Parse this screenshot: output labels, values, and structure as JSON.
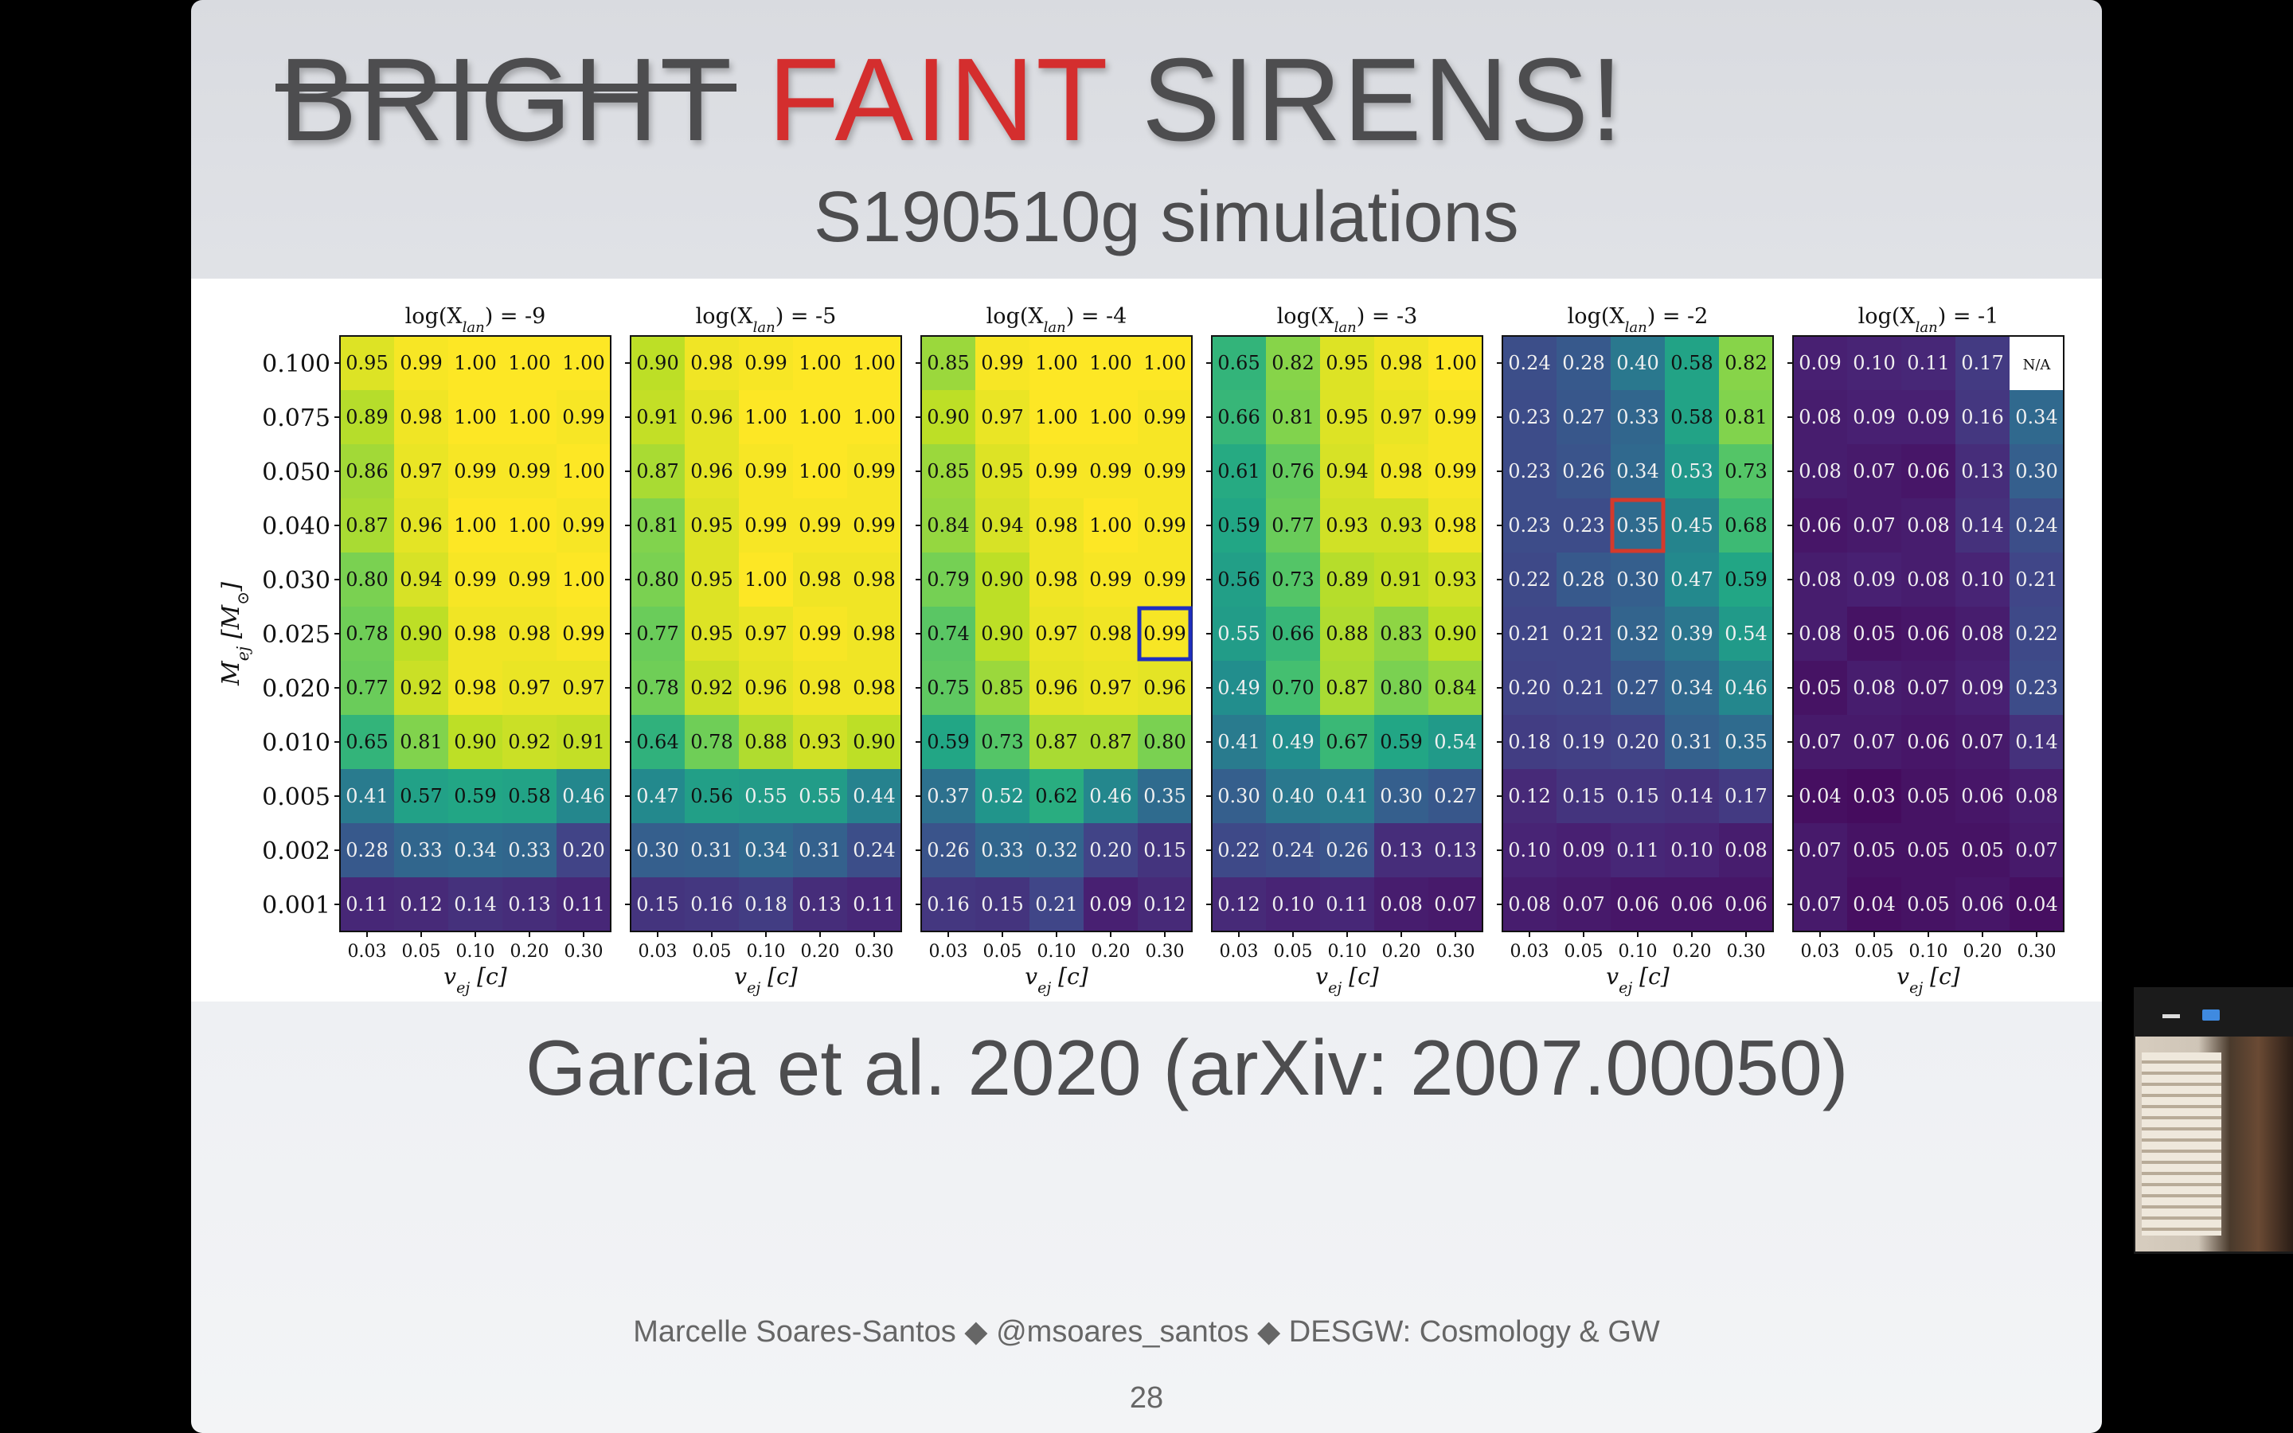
{
  "slide": {
    "title": {
      "struck": "BRIGHT",
      "red": "FAINT",
      "rest": "SIRENS!"
    },
    "subtitle": "S190510g simulations",
    "citation": "Garcia et al. 2020 (arXiv: 2007.00050)",
    "footer": "Marcelle Soares-Santos ◆ @msoares_santos ◆ DESGW: Cosmology & GW",
    "page_number": "28"
  },
  "chart_data": {
    "type": "heatmap",
    "ylabel": "M_ej [M_⊙]",
    "xlabel": "v_ej [c]",
    "y_categories": [
      "0.100",
      "0.075",
      "0.050",
      "0.040",
      "0.030",
      "0.025",
      "0.020",
      "0.010",
      "0.005",
      "0.002",
      "0.001"
    ],
    "x_categories": [
      "0.03",
      "0.05",
      "0.10",
      "0.20",
      "0.30"
    ],
    "colormap": "viridis",
    "highlight_colors": {
      "blue": "#1f2fbf",
      "red": "#d43a2c"
    },
    "panels": [
      {
        "title": "log(X_lan) = -9",
        "values": [
          [
            0.95,
            0.99,
            1.0,
            1.0,
            1.0
          ],
          [
            0.89,
            0.98,
            1.0,
            1.0,
            0.99
          ],
          [
            0.86,
            0.97,
            0.99,
            0.99,
            1.0
          ],
          [
            0.87,
            0.96,
            1.0,
            1.0,
            0.99
          ],
          [
            0.8,
            0.94,
            0.99,
            0.99,
            1.0
          ],
          [
            0.78,
            0.9,
            0.98,
            0.98,
            0.99
          ],
          [
            0.77,
            0.92,
            0.98,
            0.97,
            0.97
          ],
          [
            0.65,
            0.81,
            0.9,
            0.92,
            0.91
          ],
          [
            0.41,
            0.57,
            0.59,
            0.58,
            0.46
          ],
          [
            0.28,
            0.33,
            0.34,
            0.33,
            0.2
          ],
          [
            0.11,
            0.12,
            0.14,
            0.13,
            0.11
          ]
        ]
      },
      {
        "title": "log(X_lan) = -5",
        "values": [
          [
            0.9,
            0.98,
            0.99,
            1.0,
            1.0
          ],
          [
            0.91,
            0.96,
            1.0,
            1.0,
            1.0
          ],
          [
            0.87,
            0.96,
            0.99,
            1.0,
            0.99
          ],
          [
            0.81,
            0.95,
            0.99,
            0.99,
            0.99
          ],
          [
            0.8,
            0.95,
            1.0,
            0.98,
            0.98
          ],
          [
            0.77,
            0.95,
            0.97,
            0.99,
            0.98
          ],
          [
            0.78,
            0.92,
            0.96,
            0.98,
            0.98
          ],
          [
            0.64,
            0.78,
            0.88,
            0.93,
            0.9
          ],
          [
            0.47,
            0.56,
            0.55,
            0.55,
            0.44
          ],
          [
            0.3,
            0.31,
            0.34,
            0.31,
            0.24
          ],
          [
            0.15,
            0.16,
            0.18,
            0.13,
            0.11
          ]
        ]
      },
      {
        "title": "log(X_lan) = -4",
        "highlight": {
          "row": 5,
          "col": 4,
          "color": "blue"
        },
        "values": [
          [
            0.85,
            0.99,
            1.0,
            1.0,
            1.0
          ],
          [
            0.9,
            0.97,
            1.0,
            1.0,
            0.99
          ],
          [
            0.85,
            0.95,
            0.99,
            0.99,
            0.99
          ],
          [
            0.84,
            0.94,
            0.98,
            1.0,
            0.99
          ],
          [
            0.79,
            0.9,
            0.98,
            0.99,
            0.99
          ],
          [
            0.74,
            0.9,
            0.97,
            0.98,
            0.99
          ],
          [
            0.75,
            0.85,
            0.96,
            0.97,
            0.96
          ],
          [
            0.59,
            0.73,
            0.87,
            0.87,
            0.8
          ],
          [
            0.37,
            0.52,
            0.62,
            0.46,
            0.35
          ],
          [
            0.26,
            0.33,
            0.32,
            0.2,
            0.15
          ],
          [
            0.16,
            0.15,
            0.21,
            0.09,
            0.12
          ]
        ]
      },
      {
        "title": "log(X_lan) = -3",
        "values": [
          [
            0.65,
            0.82,
            0.95,
            0.98,
            1.0
          ],
          [
            0.66,
            0.81,
            0.95,
            0.97,
            0.99
          ],
          [
            0.61,
            0.76,
            0.94,
            0.98,
            0.99
          ],
          [
            0.59,
            0.77,
            0.93,
            0.93,
            0.98
          ],
          [
            0.56,
            0.73,
            0.89,
            0.91,
            0.93
          ],
          [
            0.55,
            0.66,
            0.88,
            0.83,
            0.9
          ],
          [
            0.49,
            0.7,
            0.87,
            0.8,
            0.84
          ],
          [
            0.41,
            0.49,
            0.67,
            0.59,
            0.54
          ],
          [
            0.3,
            0.4,
            0.41,
            0.3,
            0.27
          ],
          [
            0.22,
            0.24,
            0.26,
            0.13,
            0.13
          ],
          [
            0.12,
            0.1,
            0.11,
            0.08,
            0.07
          ]
        ]
      },
      {
        "title": "log(X_lan) = -2",
        "highlight": {
          "row": 3,
          "col": 2,
          "color": "red"
        },
        "values": [
          [
            0.24,
            0.28,
            0.4,
            0.58,
            0.82
          ],
          [
            0.23,
            0.27,
            0.33,
            0.58,
            0.81
          ],
          [
            0.23,
            0.26,
            0.34,
            0.53,
            0.73
          ],
          [
            0.23,
            0.23,
            0.35,
            0.45,
            0.68
          ],
          [
            0.22,
            0.28,
            0.3,
            0.47,
            0.59
          ],
          [
            0.21,
            0.21,
            0.32,
            0.39,
            0.54
          ],
          [
            0.2,
            0.21,
            0.27,
            0.34,
            0.46
          ],
          [
            0.18,
            0.19,
            0.2,
            0.31,
            0.35
          ],
          [
            0.12,
            0.15,
            0.15,
            0.14,
            0.17
          ],
          [
            0.1,
            0.09,
            0.11,
            0.1,
            0.08
          ],
          [
            0.08,
            0.07,
            0.06,
            0.06,
            0.06
          ]
        ]
      },
      {
        "title": "log(X_lan) = -1",
        "values": [
          [
            0.09,
            0.1,
            0.11,
            0.17,
            "N/A"
          ],
          [
            0.08,
            0.09,
            0.09,
            0.16,
            0.34
          ],
          [
            0.08,
            0.07,
            0.06,
            0.13,
            0.3
          ],
          [
            0.06,
            0.07,
            0.08,
            0.14,
            0.24
          ],
          [
            0.08,
            0.09,
            0.08,
            0.1,
            0.21
          ],
          [
            0.08,
            0.05,
            0.06,
            0.08,
            0.22
          ],
          [
            0.05,
            0.08,
            0.07,
            0.09,
            0.23
          ],
          [
            0.07,
            0.07,
            0.06,
            0.07,
            0.14
          ],
          [
            0.04,
            0.03,
            0.05,
            0.06,
            0.08
          ],
          [
            0.07,
            0.05,
            0.05,
            0.05,
            0.07
          ],
          [
            0.07,
            0.04,
            0.05,
            0.06,
            0.04
          ]
        ]
      }
    ]
  },
  "video_overlay": {
    "minimize_icon": "minimize-icon",
    "video_icon": "video-camera-icon"
  }
}
